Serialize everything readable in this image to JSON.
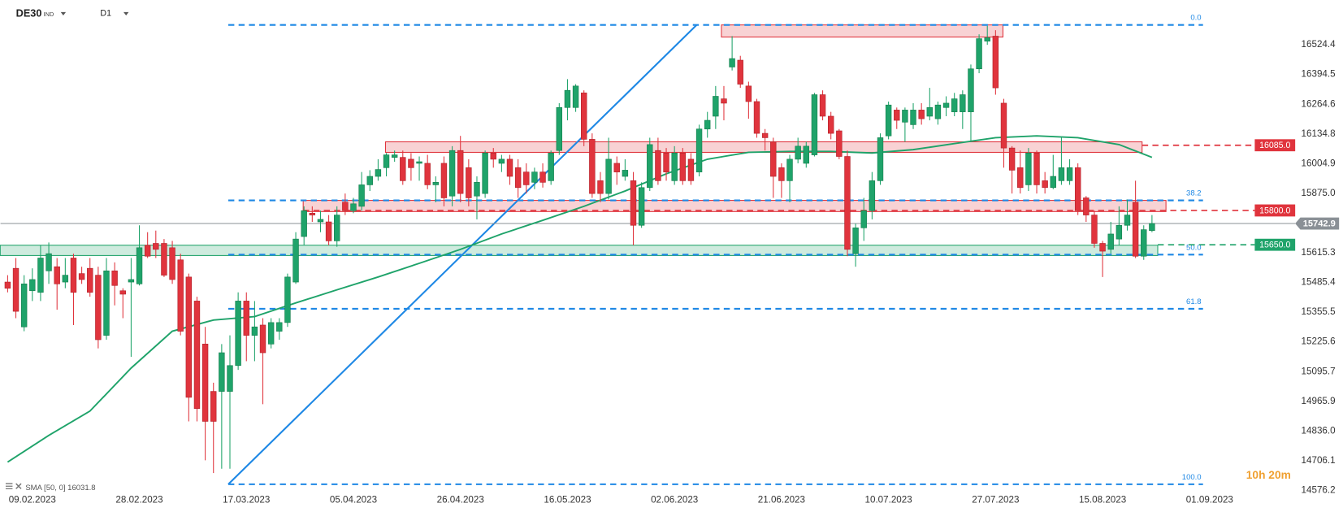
{
  "chart_data": {
    "type": "candlestick",
    "symbol": "DE30",
    "symbol_type": "IND",
    "timeframe": "D1",
    "countdown": "10h 20m",
    "categories": [
      null,
      null,
      null,
      "09.02.2023",
      null,
      null,
      null,
      null,
      null,
      null,
      null,
      null,
      null,
      null,
      null,
      null,
      "28.02.2023",
      null,
      null,
      null,
      null,
      null,
      null,
      null,
      null,
      null,
      null,
      null,
      null,
      "17.03.2023",
      null,
      null,
      null,
      null,
      null,
      null,
      null,
      null,
      null,
      null,
      null,
      null,
      "05.04.2023",
      null,
      null,
      null,
      null,
      null,
      null,
      null,
      null,
      null,
      null,
      null,
      null,
      "26.04.2023",
      null,
      null,
      null,
      null,
      null,
      null,
      null,
      null,
      null,
      null,
      null,
      null,
      "16.05.2023",
      null,
      null,
      null,
      null,
      null,
      null,
      null,
      null,
      null,
      null,
      null,
      null,
      "02.06.2023",
      null,
      null,
      null,
      null,
      null,
      null,
      null,
      null,
      null,
      null,
      null,
      null,
      "21.06.2023",
      null,
      null,
      null,
      null,
      null,
      null,
      null,
      null,
      null,
      null,
      null,
      null,
      "10.07.2023",
      null,
      null,
      null,
      null,
      null,
      null,
      null,
      null,
      null,
      null,
      null,
      null,
      "27.07.2023",
      null,
      null,
      null,
      null,
      null,
      null,
      null,
      null,
      null,
      null,
      null,
      null,
      "15.08.2023",
      null,
      null,
      null,
      null,
      null,
      null,
      null,
      null,
      null,
      null,
      null,
      null,
      "01.09.2023"
    ],
    "candles": [
      [
        15487,
        15517,
        15442,
        15460
      ],
      [
        15547,
        15592,
        15329,
        15359
      ],
      [
        15291,
        15517,
        15272,
        15479
      ],
      [
        15449,
        15547,
        15404,
        15498
      ],
      [
        15442,
        15648,
        15404,
        15592
      ],
      [
        15536,
        15660,
        15479,
        15611
      ],
      [
        15554,
        15592,
        15366,
        15479
      ],
      [
        15487,
        15592,
        15460,
        15517
      ],
      [
        15592,
        15611,
        15299,
        15442
      ],
      [
        15524,
        15554,
        15479,
        15498
      ],
      [
        15547,
        15592,
        15423,
        15442
      ],
      [
        15517,
        15554,
        15197,
        15235
      ],
      [
        15254,
        15592,
        15235,
        15536
      ],
      [
        15536,
        15573,
        15385,
        15472
      ],
      [
        15449,
        15460,
        15329,
        15434
      ],
      [
        15487,
        15592,
        15160,
        15498
      ],
      [
        15479,
        15735,
        15472,
        15637
      ],
      [
        15648,
        15705,
        15592,
        15600
      ],
      [
        15656,
        15712,
        15592,
        15630
      ],
      [
        15656,
        15675,
        15509,
        15517
      ],
      [
        15637,
        15667,
        15479,
        15498
      ],
      [
        15584,
        15611,
        15254,
        15272
      ],
      [
        15509,
        15524,
        14878,
        14983
      ],
      [
        15404,
        15423,
        14878,
        14934
      ],
      [
        15216,
        15291,
        14708,
        14878
      ],
      [
        15009,
        15047,
        14652,
        14878
      ],
      [
        15009,
        15216,
        14671,
        15178
      ],
      [
        15009,
        15254,
        14671,
        15122
      ],
      [
        15122,
        15442,
        15103,
        15404
      ],
      [
        15404,
        15442,
        15141,
        15254
      ],
      [
        15254,
        15404,
        15141,
        15291
      ],
      [
        15299,
        15329,
        14953,
        15178
      ],
      [
        15216,
        15329,
        15197,
        15310
      ],
      [
        15272,
        15329,
        15235,
        15310
      ],
      [
        15310,
        15524,
        15291,
        15509
      ],
      [
        15487,
        15705,
        15479,
        15675
      ],
      [
        15686,
        15818,
        15648,
        15799
      ],
      [
        15788,
        15818,
        15750,
        15780
      ],
      [
        15750,
        15799,
        15705,
        15761
      ],
      [
        15750,
        15780,
        15648,
        15667
      ],
      [
        15667,
        15818,
        15641,
        15780
      ],
      [
        15836,
        15874,
        15780,
        15799
      ],
      [
        15799,
        15855,
        15788,
        15829
      ],
      [
        15818,
        15968,
        15799,
        15912
      ],
      [
        15912,
        15976,
        15885,
        15949
      ],
      [
        15949,
        16024,
        15930,
        15979
      ],
      [
        15987,
        16051,
        15949,
        16043
      ],
      [
        16032,
        16062,
        16013,
        16043
      ],
      [
        16032,
        16062,
        15912,
        15930
      ],
      [
        16024,
        16051,
        15930,
        15987
      ],
      [
        16006,
        16036,
        15930,
        16013
      ],
      [
        16006,
        16043,
        15893,
        15912
      ],
      [
        15912,
        15949,
        15836,
        15923
      ],
      [
        16006,
        16036,
        15818,
        15855
      ],
      [
        15863,
        16081,
        15818,
        16062
      ],
      [
        16062,
        16126,
        15836,
        15874
      ],
      [
        15987,
        16024,
        15818,
        15855
      ],
      [
        15863,
        15949,
        15761,
        15923
      ],
      [
        15874,
        16062,
        15855,
        16051
      ],
      [
        16051,
        16073,
        15987,
        16024
      ],
      [
        16006,
        16043,
        15968,
        16024
      ],
      [
        16024,
        16043,
        15912,
        15949
      ],
      [
        15987,
        16024,
        15855,
        15900
      ],
      [
        15968,
        16006,
        15874,
        15912
      ],
      [
        15923,
        15987,
        15893,
        15968
      ],
      [
        15968,
        16006,
        15900,
        15923
      ],
      [
        15930,
        16062,
        15912,
        16051
      ],
      [
        16062,
        16269,
        16043,
        16250
      ],
      [
        16250,
        16374,
        16194,
        16325
      ],
      [
        16250,
        16352,
        16231,
        16344
      ],
      [
        16314,
        16325,
        16081,
        16111
      ],
      [
        16111,
        16137,
        15855,
        15874
      ],
      [
        15930,
        15968,
        15836,
        15874
      ],
      [
        15874,
        16118,
        15848,
        16024
      ],
      [
        16006,
        16036,
        15912,
        15968
      ],
      [
        15949,
        16024,
        15930,
        15976
      ],
      [
        15930,
        15968,
        15648,
        15735
      ],
      [
        15735,
        15923,
        15724,
        15900
      ],
      [
        15900,
        16118,
        15885,
        16088
      ],
      [
        16062,
        16118,
        15912,
        15930
      ],
      [
        16051,
        16073,
        15930,
        15968
      ],
      [
        15930,
        16081,
        15912,
        16051
      ],
      [
        16051,
        16073,
        15912,
        15930
      ],
      [
        16024,
        16051,
        15912,
        15930
      ],
      [
        15968,
        16175,
        15949,
        16156
      ],
      [
        16156,
        16231,
        16118,
        16194
      ],
      [
        16212,
        16344,
        16156,
        16299
      ],
      [
        16288,
        16344,
        16194,
        16269
      ],
      [
        16427,
        16562,
        16412,
        16464
      ],
      [
        16457,
        16476,
        16336,
        16352
      ],
      [
        16344,
        16363,
        16201,
        16276
      ],
      [
        16276,
        16288,
        16118,
        16137
      ],
      [
        16137,
        16156,
        16062,
        16118
      ],
      [
        16100,
        16118,
        15855,
        15949
      ],
      [
        15987,
        16006,
        15855,
        15930
      ],
      [
        15930,
        16043,
        15836,
        16024
      ],
      [
        16024,
        16118,
        16006,
        16081
      ],
      [
        16006,
        16100,
        15987,
        16081
      ],
      [
        16043,
        16314,
        16036,
        16306
      ],
      [
        16306,
        16325,
        16194,
        16212
      ],
      [
        16212,
        16231,
        16111,
        16137
      ],
      [
        16148,
        16156,
        16024,
        16036
      ],
      [
        16036,
        16062,
        15600,
        15630
      ],
      [
        15611,
        15742,
        15554,
        15724
      ],
      [
        15724,
        15855,
        15667,
        15799
      ],
      [
        15799,
        15968,
        15761,
        15930
      ],
      [
        15930,
        16137,
        15912,
        16118
      ],
      [
        16126,
        16276,
        16111,
        16261
      ],
      [
        16239,
        16250,
        16156,
        16194
      ],
      [
        16186,
        16250,
        16100,
        16239
      ],
      [
        16175,
        16269,
        16156,
        16239
      ],
      [
        16239,
        16269,
        16175,
        16201
      ],
      [
        16212,
        16336,
        16194,
        16250
      ],
      [
        16201,
        16276,
        16175,
        16261
      ],
      [
        16250,
        16299,
        16212,
        16269
      ],
      [
        16231,
        16314,
        16212,
        16288
      ],
      [
        16231,
        16325,
        16156,
        16306
      ],
      [
        16231,
        16438,
        16100,
        16419
      ],
      [
        16419,
        16570,
        16400,
        16551
      ],
      [
        16540,
        16607,
        16524,
        16555
      ],
      [
        16562,
        16588,
        16306,
        16336
      ],
      [
        16269,
        16288,
        15987,
        16073
      ],
      [
        16073,
        16081,
        15874,
        15976
      ],
      [
        15987,
        16062,
        15874,
        15900
      ],
      [
        15912,
        16073,
        15885,
        16051
      ],
      [
        16051,
        16062,
        15874,
        15912
      ],
      [
        15930,
        15968,
        15874,
        15900
      ],
      [
        15900,
        16043,
        15893,
        15949
      ],
      [
        15930,
        16118,
        15912,
        15987
      ],
      [
        15930,
        16024,
        15912,
        15987
      ],
      [
        15987,
        16006,
        15780,
        15799
      ],
      [
        15855,
        15863,
        15750,
        15780
      ],
      [
        15780,
        15799,
        15637,
        15656
      ],
      [
        15656,
        15667,
        15509,
        15622
      ],
      [
        15630,
        15750,
        15611,
        15697
      ],
      [
        15675,
        15818,
        15648,
        15735
      ],
      [
        15735,
        15848,
        15712,
        15780
      ],
      [
        15836,
        15930,
        15592,
        15600
      ],
      [
        15600,
        15735,
        15584,
        15716
      ],
      [
        15712,
        15780,
        15705,
        15742.9
      ],
      null,
      null,
      null,
      null,
      null,
      null,
      null
    ],
    "up_color": "#1fa36a",
    "down_color": "#e0343d",
    "ylim": [
      14557,
      16720
    ],
    "yticks": [
      16524.4,
      16394.5,
      16264.6,
      16134.8,
      16004.9,
      {
        "value": 15875,
        "label": "15875.0"
      },
      15615.3,
      15485.4,
      15355.5,
      15225.6,
      15095.7,
      14965.9,
      {
        "value": 14836,
        "label": "14836.0"
      },
      14706.1,
      14576.2
    ],
    "sma": {
      "name": "SMA [50, 0] 16031.8",
      "color": "#1fa36a",
      "x": [
        0,
        5,
        10,
        15,
        20,
        25,
        30,
        35,
        40,
        45,
        50,
        55,
        60,
        65,
        70,
        75,
        80,
        85,
        90,
        95,
        100,
        105,
        110,
        115,
        120,
        125,
        130,
        135,
        139
      ],
      "values": [
        14700,
        14817,
        14923,
        15111,
        15272,
        15321,
        15336,
        15396,
        15453,
        15509,
        15569,
        15630,
        15697,
        15757,
        15818,
        15885,
        15960,
        16024,
        16054,
        16058,
        16058,
        16051,
        16066,
        16092,
        16118,
        16126,
        16118,
        16088,
        16031.8
      ]
    },
    "fib_color": "#1e88e5",
    "fib_range": [
      26.8,
      145.2
    ],
    "fib_levels": [
      {
        "label": "0.0",
        "price": 16611
      },
      {
        "label": "38.2",
        "price": 15844
      },
      {
        "label": "50.0",
        "price": 15607
      },
      {
        "label": "61.8",
        "price": 15370
      },
      {
        "label": "100.0",
        "price": 14603
      }
    ],
    "trend_line": {
      "x": [
        26.8,
        83.7
      ],
      "values": [
        14603,
        16611
      ]
    },
    "zones": [
      {
        "top": 16611,
        "bottom": 16558,
        "from": 86.7,
        "to": 120.9,
        "color": "#e0343d"
      },
      {
        "top": 16100,
        "bottom": 16054,
        "from": 45.9,
        "to": 137.8,
        "color": "#e0343d"
      },
      {
        "top": 15844,
        "bottom": 15795,
        "from": 35.9,
        "to": 140.7,
        "color": "#e0343d"
      },
      {
        "top": 15648,
        "bottom": 15603,
        "from": -0.9,
        "to": 139.7,
        "color": "#1fa36a"
      }
    ],
    "levels": [
      {
        "value": 16085,
        "label": "16085.0",
        "color": "#e0343d",
        "from": 137.8
      },
      {
        "value": 15800,
        "label": "15800.0",
        "color": "#e0343d",
        "from": 35.9
      },
      {
        "value": 15650,
        "label": "15650.0",
        "color": "#1fa36a",
        "from": 139.7
      }
    ],
    "current_price_color": "#8a9096"
  }
}
